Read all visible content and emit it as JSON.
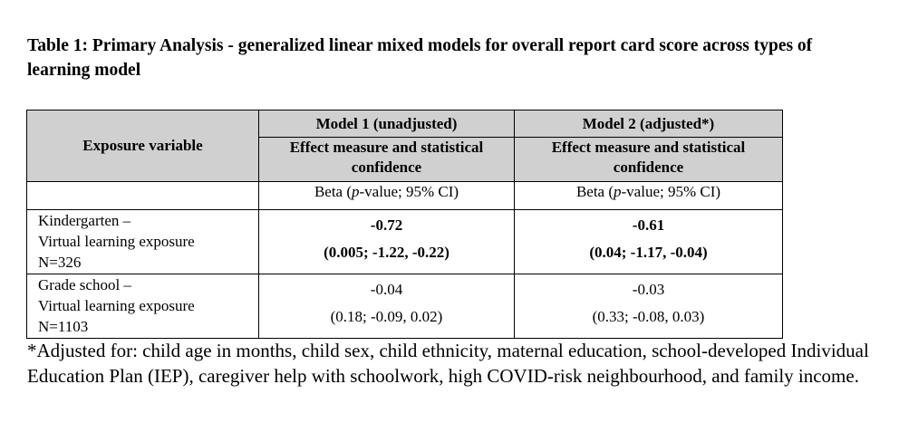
{
  "document": {
    "title": "Table 1: Primary Analysis - generalized linear mixed models for overall report card score across types of learning model",
    "table": {
      "header": {
        "exposure_label": "Exposure variable",
        "models": [
          {
            "name": "Model 1 (unadjusted)",
            "sub": "Effect measure and statistical confidence",
            "beta_prefix": "Beta (",
            "beta_p": "p",
            "beta_suffix": "-value; 95% CI)"
          },
          {
            "name": "Model 2 (adjusted*)",
            "sub": "Effect measure and statistical confidence",
            "beta_prefix": "Beta (",
            "beta_p": "p",
            "beta_suffix": "-value; 95% CI)"
          }
        ]
      },
      "rows": [
        {
          "exposure_line1": "Kindergarten –",
          "exposure_line2": "Virtual learning exposure",
          "exposure_line3": "N=326",
          "model1_estimate": "-0.72",
          "model1_ci": "(0.005; -1.22, -0.22)",
          "model2_estimate": "-0.61",
          "model2_ci": "(0.04; -1.17, -0.04)"
        },
        {
          "exposure_line1": "Grade school –",
          "exposure_line2": "Virtual learning exposure",
          "exposure_line3": "N=1103",
          "model1_estimate": "-0.04",
          "model1_ci": "(0.18; -0.09, 0.02)",
          "model2_estimate": "-0.03",
          "model2_ci": "(0.33; -0.08, 0.03)"
        }
      ]
    },
    "footnote": "*Adjusted for: child age in months, child sex, child ethnicity, maternal education, school-developed Individual Education Plan (IEP), caregiver help with schoolwork, high COVID-risk neighbourhood, and family income."
  }
}
